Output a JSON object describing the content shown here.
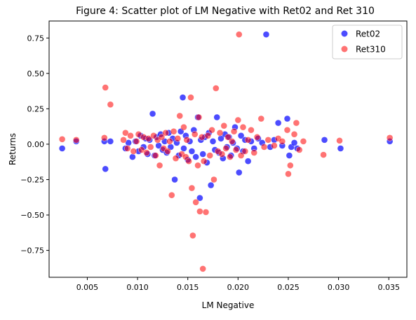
{
  "chart_data": {
    "type": "scatter",
    "title": "Figure 4: Scatter plot of LM Negative with Ret02 and Ret 310",
    "xlabel": "LM Negative",
    "ylabel": "Returns",
    "xlim": [
      0.0012,
      0.0368
    ],
    "ylim": [
      -0.94,
      0.87
    ],
    "x_ticks": [
      0.005,
      0.01,
      0.015,
      0.02,
      0.025,
      0.03,
      0.035
    ],
    "x_tick_labels": [
      "0.005",
      "0.010",
      "0.015",
      "0.020",
      "0.025",
      "0.030",
      "0.035"
    ],
    "y_ticks": [
      -0.75,
      -0.5,
      -0.25,
      0.0,
      0.25,
      0.5,
      0.75
    ],
    "y_tick_labels": [
      "−0.75",
      "−0.50",
      "−0.25",
      "0.00",
      "0.25",
      "0.50",
      "0.75"
    ],
    "grid": false,
    "legend_position": "top-right",
    "series": [
      {
        "name": "Ret02",
        "color": "#0000ff",
        "points": [
          [
            0.0025,
            -0.03
          ],
          [
            0.0039,
            0.02
          ],
          [
            0.0067,
            0.02
          ],
          [
            0.0068,
            -0.175
          ],
          [
            0.0073,
            0.02
          ],
          [
            0.0088,
            -0.03
          ],
          [
            0.0091,
            0.01
          ],
          [
            0.0095,
            -0.09
          ],
          [
            0.0098,
            0.02
          ],
          [
            0.0101,
            -0.05
          ],
          [
            0.0103,
            0.06
          ],
          [
            0.0106,
            -0.02
          ],
          [
            0.0108,
            0.04
          ],
          [
            0.011,
            -0.07
          ],
          [
            0.0112,
            0.03
          ],
          [
            0.0115,
            0.215
          ],
          [
            0.0117,
            -0.08
          ],
          [
            0.0119,
            0.05
          ],
          [
            0.0121,
            -0.01
          ],
          [
            0.0123,
            0.07
          ],
          [
            0.0125,
            -0.04
          ],
          [
            0.0127,
            0.02
          ],
          [
            0.0129,
            -0.06
          ],
          [
            0.0131,
            0.08
          ],
          [
            0.0133,
            -0.02
          ],
          [
            0.0135,
            0.04
          ],
          [
            0.0137,
            -0.25
          ],
          [
            0.0139,
            0.01
          ],
          [
            0.0141,
            -0.08
          ],
          [
            0.0143,
            0.09
          ],
          [
            0.0145,
            0.33
          ],
          [
            0.0146,
            -0.03
          ],
          [
            0.0148,
            0.06
          ],
          [
            0.015,
            -0.11
          ],
          [
            0.0152,
            0.02
          ],
          [
            0.0154,
            -0.05
          ],
          [
            0.0156,
            0.1
          ],
          [
            0.0158,
            -0.09
          ],
          [
            0.016,
            0.19
          ],
          [
            0.0162,
            -0.38
          ],
          [
            0.0163,
            0.03
          ],
          [
            0.0165,
            -0.07
          ],
          [
            0.0167,
            0.05
          ],
          [
            0.0169,
            -0.13
          ],
          [
            0.0171,
            0.08
          ],
          [
            0.0173,
            -0.29
          ],
          [
            0.0175,
            0.02
          ],
          [
            0.0177,
            -0.04
          ],
          [
            0.0179,
            0.19
          ],
          [
            0.0181,
            -0.06
          ],
          [
            0.0183,
            0.04
          ],
          [
            0.0185,
            -0.1
          ],
          [
            0.0187,
            0.07
          ],
          [
            0.0189,
            -0.02
          ],
          [
            0.0191,
            0.05
          ],
          [
            0.0193,
            -0.08
          ],
          [
            0.0195,
            0.01
          ],
          [
            0.0197,
            0.12
          ],
          [
            0.0199,
            -0.03
          ],
          [
            0.0201,
            -0.2
          ],
          [
            0.0203,
            0.06
          ],
          [
            0.0205,
            -0.05
          ],
          [
            0.0207,
            0.03
          ],
          [
            0.021,
            -0.12
          ],
          [
            0.0213,
            0.02
          ],
          [
            0.0216,
            -0.03
          ],
          [
            0.022,
            0.04
          ],
          [
            0.0224,
            0.01
          ],
          [
            0.0228,
            0.775
          ],
          [
            0.0232,
            -0.02
          ],
          [
            0.0236,
            0.03
          ],
          [
            0.024,
            0.15
          ],
          [
            0.0244,
            -0.01
          ],
          [
            0.0249,
            0.18
          ],
          [
            0.0251,
            -0.08
          ],
          [
            0.0253,
            -0.02
          ],
          [
            0.0256,
            0.01
          ],
          [
            0.0259,
            -0.03
          ],
          [
            0.0286,
            0.03
          ],
          [
            0.0302,
            -0.03
          ],
          [
            0.0351,
            0.02
          ]
        ]
      },
      {
        "name": "Ret310",
        "color": "#ff0000",
        "points": [
          [
            0.0025,
            0.035
          ],
          [
            0.0039,
            0.03
          ],
          [
            0.0067,
            0.045
          ],
          [
            0.0068,
            0.4
          ],
          [
            0.0073,
            0.28
          ],
          [
            0.0086,
            0.03
          ],
          [
            0.0088,
            0.08
          ],
          [
            0.009,
            -0.03
          ],
          [
            0.0093,
            0.06
          ],
          [
            0.0096,
            -0.05
          ],
          [
            0.0099,
            0.02
          ],
          [
            0.0101,
            0.07
          ],
          [
            0.0104,
            -0.04
          ],
          [
            0.0106,
            0.05
          ],
          [
            0.0109,
            -0.06
          ],
          [
            0.0111,
            0.04
          ],
          [
            0.0113,
            -0.02
          ],
          [
            0.0116,
            0.06
          ],
          [
            0.0118,
            -0.08
          ],
          [
            0.012,
            0.03
          ],
          [
            0.0122,
            -0.15
          ],
          [
            0.0124,
            0.05
          ],
          [
            0.0126,
            -0.03
          ],
          [
            0.0128,
            0.08
          ],
          [
            0.013,
            -0.05
          ],
          [
            0.0132,
            0.02
          ],
          [
            0.0134,
            -0.36
          ],
          [
            0.0136,
            0.09
          ],
          [
            0.0138,
            -0.1
          ],
          [
            0.014,
            0.04
          ],
          [
            0.0142,
            0.2
          ],
          [
            0.0144,
            -0.07
          ],
          [
            0.0146,
            0.12
          ],
          [
            0.0148,
            -0.09
          ],
          [
            0.0149,
            0.03
          ],
          [
            0.0151,
            -0.12
          ],
          [
            0.0153,
            0.33
          ],
          [
            0.0154,
            -0.31
          ],
          [
            0.0155,
            -0.645
          ],
          [
            0.0157,
            0.07
          ],
          [
            0.0158,
            -0.41
          ],
          [
            0.016,
            -0.15
          ],
          [
            0.0161,
            0.19
          ],
          [
            0.0162,
            -0.475
          ],
          [
            0.0164,
            0.05
          ],
          [
            0.0165,
            -0.88
          ],
          [
            0.0166,
            -0.12
          ],
          [
            0.0168,
            -0.48
          ],
          [
            0.017,
            0.06
          ],
          [
            0.0172,
            -0.08
          ],
          [
            0.0174,
            0.1
          ],
          [
            0.0176,
            -0.25
          ],
          [
            0.0178,
            0.395
          ],
          [
            0.018,
            -0.05
          ],
          [
            0.0182,
            0.08
          ],
          [
            0.0184,
            -0.07
          ],
          [
            0.0186,
            0.13
          ],
          [
            0.0188,
            -0.03
          ],
          [
            0.019,
            0.05
          ],
          [
            0.0192,
            -0.09
          ],
          [
            0.0194,
            0.02
          ],
          [
            0.0196,
            0.09
          ],
          [
            0.0198,
            -0.04
          ],
          [
            0.02,
            0.17
          ],
          [
            0.0201,
            0.775
          ],
          [
            0.0203,
            -0.08
          ],
          [
            0.0205,
            0.12
          ],
          [
            0.0207,
            -0.05
          ],
          [
            0.021,
            0.03
          ],
          [
            0.0213,
            0.1
          ],
          [
            0.0216,
            -0.06
          ],
          [
            0.0219,
            0.05
          ],
          [
            0.0223,
            0.18
          ],
          [
            0.0226,
            -0.02
          ],
          [
            0.023,
            0.03
          ],
          [
            0.0236,
            -0.01
          ],
          [
            0.024,
            0.04
          ],
          [
            0.0244,
            0.02
          ],
          [
            0.0249,
            0.1
          ],
          [
            0.025,
            -0.21
          ],
          [
            0.0252,
            -0.15
          ],
          [
            0.0256,
            0.07
          ],
          [
            0.0258,
            0.15
          ],
          [
            0.0261,
            -0.04
          ],
          [
            0.0265,
            0.02
          ],
          [
            0.0285,
            -0.075
          ],
          [
            0.0301,
            0.025
          ],
          [
            0.0351,
            0.045
          ]
        ]
      }
    ]
  }
}
